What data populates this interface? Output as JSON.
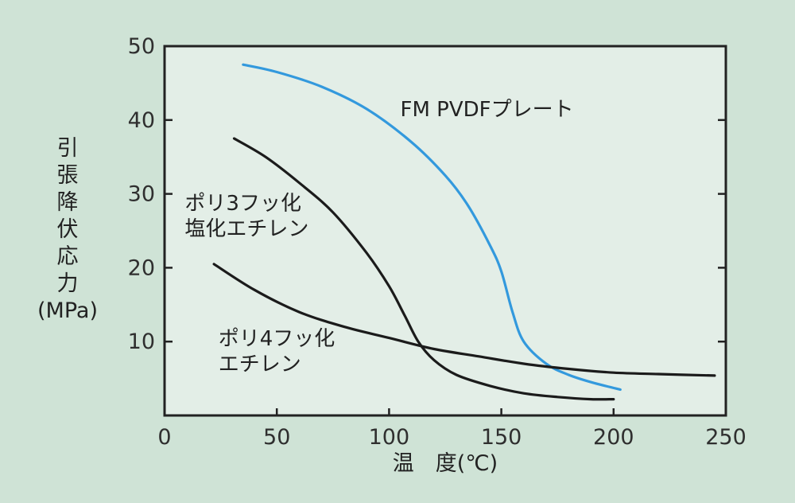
{
  "chart_data": {
    "type": "line",
    "title": "",
    "xlabel": "温　度(℃)",
    "ylabel": [
      "引",
      "張",
      "降",
      "伏",
      "応",
      "力",
      "(MPa)"
    ],
    "xlim": [
      0,
      250
    ],
    "ylim": [
      0,
      50
    ],
    "xticks": [
      "0",
      "50",
      "100",
      "150",
      "200",
      "250"
    ],
    "yticks": [
      "10",
      "20",
      "30",
      "40",
      "50"
    ],
    "grid": false,
    "colors": {
      "background": "#cfe3d6",
      "plot_bg": "#e3eee7",
      "axis": "#222222",
      "blue": "#3399dd",
      "black": "#1b1b1b"
    },
    "series": [
      {
        "name": "FM PVDFプレート",
        "label_lines": [
          "FM PVDFプレート"
        ],
        "label_at": [
          105,
          40.5
        ],
        "color": "#3399dd",
        "x": [
          35,
          50,
          70,
          90,
          110,
          125,
          135,
          145,
          150,
          155,
          160,
          170,
          180,
          190,
          203
        ],
        "y": [
          47.5,
          46.5,
          44.5,
          41.5,
          37,
          32.5,
          28.5,
          23,
          19.5,
          14,
          10,
          7,
          5.5,
          4.5,
          3.5
        ]
      },
      {
        "name": "ポリ3フッ化塩化エチレン",
        "label_lines": [
          "ポリ3フッ化",
          "塩化エチレン"
        ],
        "label_at": [
          9,
          27.8
        ],
        "color": "#1b1b1b",
        "x": [
          31,
          45,
          60,
          75,
          90,
          100,
          107,
          113,
          120,
          130,
          145,
          160,
          175,
          190,
          200
        ],
        "y": [
          37.5,
          35,
          31.5,
          27.5,
          22,
          17.5,
          13.5,
          10,
          7.5,
          5.5,
          4,
          3,
          2.5,
          2.2,
          2.2
        ]
      },
      {
        "name": "ポリ4フッ化エチレン",
        "label_lines": [
          "ポリ4フッ化",
          "エチレン"
        ],
        "label_at": [
          24,
          9.5
        ],
        "color": "#1b1b1b",
        "x": [
          22,
          40,
          60,
          80,
          100,
          120,
          140,
          160,
          180,
          200,
          220,
          245
        ],
        "y": [
          20.5,
          17,
          14,
          12,
          10.5,
          9,
          8,
          7,
          6.3,
          5.8,
          5.6,
          5.4
        ]
      }
    ]
  }
}
